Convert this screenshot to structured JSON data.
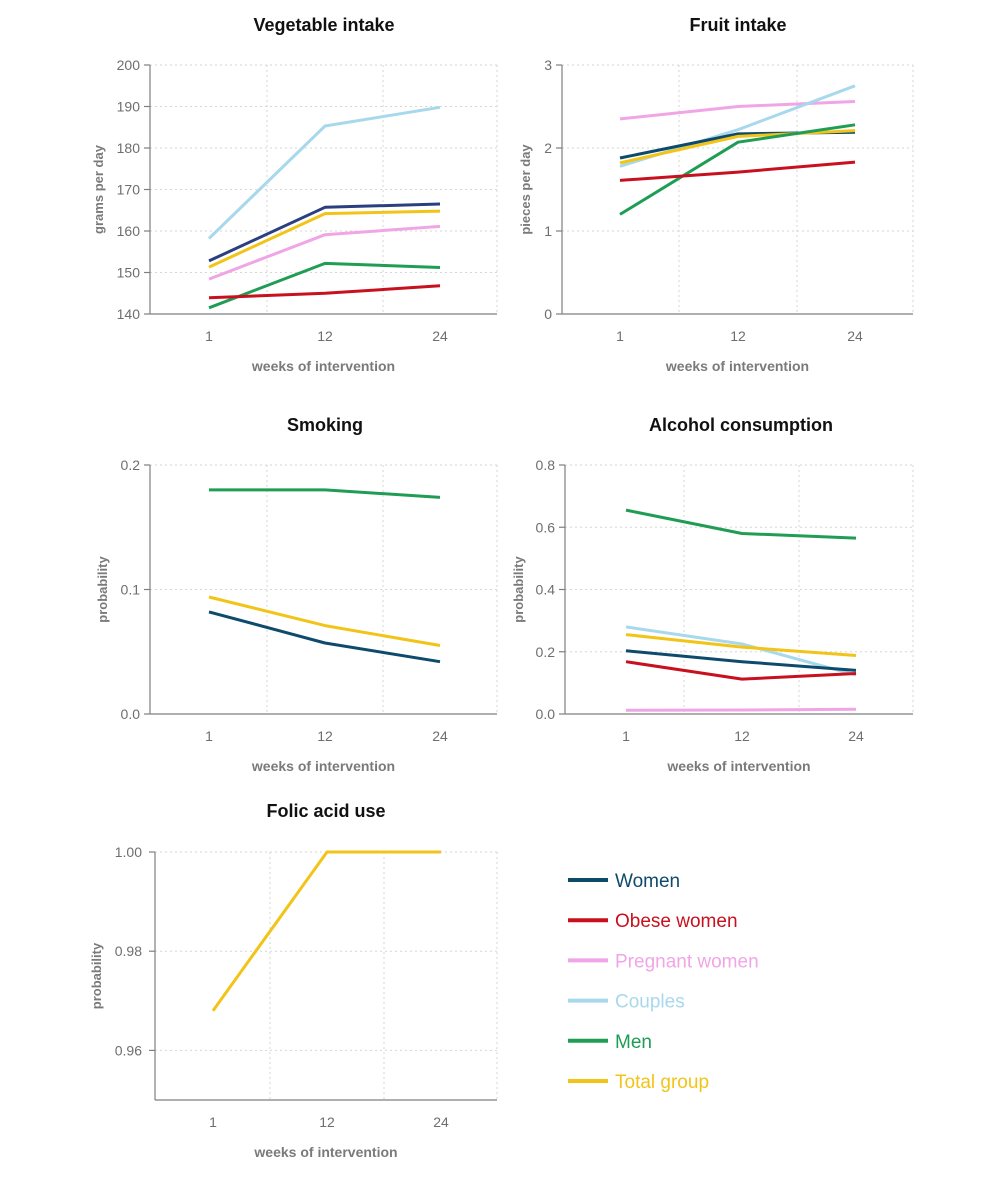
{
  "series_styles": {
    "Women": "#0d4a6b",
    "Obese women": "#c8101e",
    "Pregnant women": "#f0a6e6",
    "Couples": "#a8d8ec",
    "Men": "#1f9d55",
    "Total group": "#f2c418"
  },
  "legend": [
    "Women",
    "Obese women",
    "Pregnant women",
    "Couples",
    "Men",
    "Total group"
  ],
  "chart_data": [
    {
      "type": "line",
      "title": "Vegetable intake",
      "xlabel": "weeks of intervention",
      "ylabel": "grams per day",
      "categories": [
        "1",
        "12",
        "24"
      ],
      "ylim": [
        140,
        200
      ],
      "yticks": [
        140,
        150,
        160,
        170,
        180,
        190,
        200
      ],
      "ytick_labels": [
        "140",
        "150",
        "160",
        "170",
        "180",
        "190",
        "200"
      ],
      "grid": true,
      "series": [
        {
          "name": "Couples",
          "values": [
            158.2,
            185.3,
            189.8
          ]
        },
        {
          "name": "Women",
          "color": "#2b3f80",
          "values": [
            152.8,
            165.7,
            166.5
          ]
        },
        {
          "name": "Total group",
          "values": [
            151.3,
            164.2,
            164.8
          ]
        },
        {
          "name": "Pregnant women",
          "values": [
            148.4,
            159.1,
            161.1
          ]
        },
        {
          "name": "Men",
          "values": [
            141.5,
            152.2,
            151.2
          ]
        },
        {
          "name": "Obese women",
          "values": [
            143.9,
            145.0,
            146.8
          ]
        }
      ]
    },
    {
      "type": "line",
      "title": "Fruit intake",
      "xlabel": "weeks of intervention",
      "ylabel": "pieces per day",
      "categories": [
        "1",
        "12",
        "24"
      ],
      "ylim": [
        0,
        3
      ],
      "yticks": [
        0,
        1,
        2,
        3
      ],
      "ytick_labels": [
        "0",
        "1",
        "2",
        "3"
      ],
      "grid": true,
      "series": [
        {
          "name": "Pregnant women",
          "values": [
            2.35,
            2.5,
            2.56
          ]
        },
        {
          "name": "Couples",
          "values": [
            1.78,
            2.22,
            2.75
          ]
        },
        {
          "name": "Women",
          "values": [
            1.88,
            2.17,
            2.19
          ]
        },
        {
          "name": "Total group",
          "values": [
            1.82,
            2.14,
            2.21
          ]
        },
        {
          "name": "Men",
          "values": [
            1.2,
            2.07,
            2.28
          ]
        },
        {
          "name": "Obese women",
          "values": [
            1.61,
            1.71,
            1.83
          ]
        }
      ]
    },
    {
      "type": "line",
      "title": "Smoking",
      "xlabel": "weeks of intervention",
      "ylabel": "probability",
      "categories": [
        "1",
        "12",
        "24"
      ],
      "ylim": [
        0,
        0.2
      ],
      "yticks": [
        0,
        0.1,
        0.2
      ],
      "ytick_labels": [
        "0.0",
        "0.1",
        "0.2"
      ],
      "grid": true,
      "series": [
        {
          "name": "Men",
          "values": [
            0.18,
            0.18,
            0.174
          ]
        },
        {
          "name": "Total group",
          "values": [
            0.094,
            0.071,
            0.055
          ]
        },
        {
          "name": "Women",
          "values": [
            0.082,
            0.057,
            0.042
          ]
        }
      ]
    },
    {
      "type": "line",
      "title": "Alcohol consumption",
      "xlabel": "weeks of intervention",
      "ylabel": "probability",
      "categories": [
        "1",
        "12",
        "24"
      ],
      "ylim": [
        0,
        0.8
      ],
      "yticks": [
        0,
        0.2,
        0.4,
        0.6,
        0.8
      ],
      "ytick_labels": [
        "0.0",
        "0.2",
        "0.4",
        "0.6",
        "0.8"
      ],
      "grid": true,
      "series": [
        {
          "name": "Men",
          "values": [
            0.655,
            0.58,
            0.565
          ]
        },
        {
          "name": "Couples",
          "values": [
            0.28,
            0.225,
            0.125
          ]
        },
        {
          "name": "Total group",
          "values": [
            0.255,
            0.215,
            0.188
          ]
        },
        {
          "name": "Women",
          "values": [
            0.203,
            0.168,
            0.14
          ]
        },
        {
          "name": "Obese women",
          "values": [
            0.168,
            0.112,
            0.13
          ]
        },
        {
          "name": "Pregnant women",
          "values": [
            0.012,
            0.013,
            0.015
          ]
        }
      ]
    },
    {
      "type": "line",
      "title": "Folic acid use",
      "xlabel": "weeks of intervention",
      "ylabel": "probability",
      "categories": [
        "1",
        "12",
        "24"
      ],
      "ylim": [
        0.95,
        1.0
      ],
      "yticks": [
        0.96,
        0.98,
        1.0
      ],
      "ytick_labels": [
        "0.96",
        "0.98",
        "1.00"
      ],
      "grid": true,
      "series": [
        {
          "name": "Total group",
          "values": [
            0.968,
            1.0,
            1.0
          ]
        }
      ]
    }
  ]
}
